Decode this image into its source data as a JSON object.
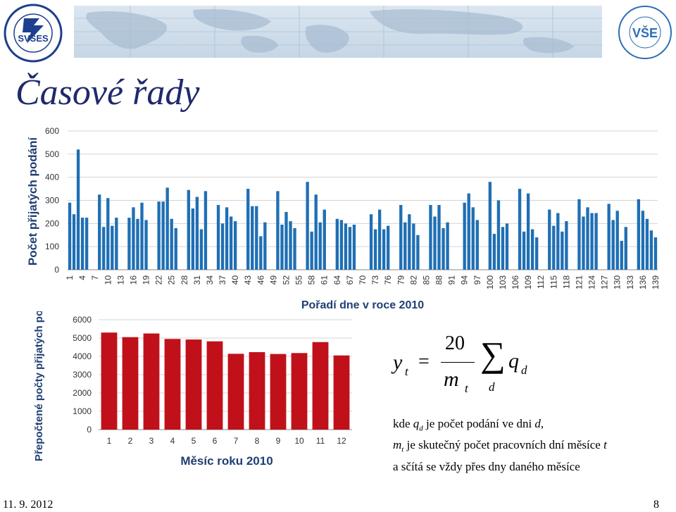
{
  "title": "Časové řady",
  "logo_left": {
    "text": "SVSES",
    "ring": "SOUKROMÁ VYSOKÁ ŠKOLA EKONOMICKÝCH STUDIÍ s.r.o."
  },
  "logo_right": {
    "text": "VŠE",
    "ring": "VYSOKÁ ŠKOLA EKONOMICKÁ V PRAZE"
  },
  "formula": {
    "lhs": "y",
    "lhs_sub": "t",
    "eq": "=",
    "num": "20",
    "den": "m",
    "den_sub": "t",
    "sigma": "∑",
    "sum_index": "d",
    "term": "q",
    "term_sub": "d"
  },
  "explanation": {
    "line1": {
      "pre": "kde ",
      "var": "q",
      "sub": "d",
      "mid": " je počet podání ve dni ",
      "var2": "d",
      "post": ","
    },
    "line2": {
      "var": "m",
      "sub": "t",
      "mid": " je skutečný počet pracovních dní měsíce ",
      "var2": "t"
    },
    "line3": "a sčítá se vždy přes dny daného měsíce"
  },
  "footer": {
    "date": "11. 9. 2012",
    "page": "8"
  },
  "chart_data": [
    {
      "type": "bar",
      "xlabel": "Pořadí dne v roce 2010",
      "ylabel": "Počet přijatých podání",
      "ylim": [
        0,
        600
      ],
      "yticks": [
        0,
        100,
        200,
        300,
        400,
        500,
        600
      ],
      "x_tick_labels": [
        "1",
        "4",
        "7",
        "10",
        "13",
        "16",
        "19",
        "22",
        "25",
        "28",
        "31",
        "34",
        "37",
        "40",
        "43",
        "46",
        "49",
        "52",
        "55",
        "58",
        "61",
        "64",
        "67",
        "70",
        "73",
        "76",
        "79",
        "82",
        "85",
        "88",
        "91",
        "94",
        "97",
        "100",
        "103",
        "106",
        "109",
        "112",
        "115",
        "118",
        "121",
        "124",
        "127",
        "130",
        "133",
        "136",
        "139"
      ],
      "color": "#1f6fb4",
      "values": [
        290,
        240,
        520,
        225,
        225,
        0,
        0,
        325,
        185,
        310,
        190,
        225,
        0,
        0,
        225,
        270,
        220,
        290,
        215,
        0,
        0,
        295,
        295,
        355,
        220,
        180,
        0,
        0,
        345,
        265,
        315,
        175,
        340,
        0,
        0,
        280,
        200,
        270,
        230,
        210,
        0,
        0,
        350,
        275,
        275,
        145,
        205,
        0,
        0,
        340,
        195,
        250,
        210,
        180,
        0,
        0,
        380,
        165,
        325,
        205,
        260,
        0,
        0,
        220,
        215,
        200,
        185,
        195,
        0,
        0,
        0,
        240,
        175,
        260,
        175,
        190,
        0,
        0,
        280,
        205,
        240,
        200,
        150,
        0,
        0,
        280,
        230,
        280,
        180,
        205,
        0,
        0,
        0,
        290,
        330,
        270,
        215,
        0,
        0,
        380,
        155,
        300,
        185,
        200,
        0,
        0,
        350,
        165,
        330,
        175,
        140,
        0,
        0,
        260,
        190,
        245,
        165,
        210,
        0,
        0,
        305,
        230,
        270,
        245,
        245,
        0,
        0,
        285,
        215,
        255,
        125,
        185,
        0,
        0,
        305,
        255,
        220,
        170,
        140
      ]
    },
    {
      "type": "bar",
      "xlabel": "Měsíc roku 2010",
      "ylabel": "Přepočtené počty přijatých podání",
      "ylim": [
        0,
        6000
      ],
      "yticks": [
        0,
        1000,
        2000,
        3000,
        4000,
        5000,
        6000
      ],
      "categories": [
        "1",
        "2",
        "3",
        "4",
        "5",
        "6",
        "7",
        "8",
        "9",
        "10",
        "11",
        "12"
      ],
      "color": "#c0111b",
      "values": [
        5300,
        5050,
        5250,
        4950,
        4920,
        4820,
        4140,
        4230,
        4130,
        4180,
        4780,
        4050
      ]
    }
  ]
}
